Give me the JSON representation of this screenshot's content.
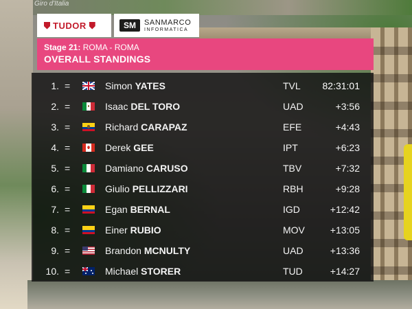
{
  "overlay_corner_text": "Giro d'Italia",
  "sponsors": {
    "tudor": "TUDOR",
    "sanmarco_name": "SANMARCO",
    "sanmarco_sub": "INFORMATICA",
    "sanmarco_mark": "SM"
  },
  "header": {
    "stage_label": "Stage 21:",
    "route": "ROMA - ROMA",
    "title": "OVERALL STANDINGS",
    "color": "#e8477f"
  },
  "standings": [
    {
      "pos": "1.",
      "trend": "=",
      "flag": "gb",
      "first": "Simon",
      "last": "YATES",
      "team": "TVL",
      "time": "82:31:01"
    },
    {
      "pos": "2.",
      "trend": "=",
      "flag": "mx",
      "first": "Isaac",
      "last": "DEL TORO",
      "team": "UAD",
      "time": "+3:56"
    },
    {
      "pos": "3.",
      "trend": "=",
      "flag": "ec",
      "first": "Richard",
      "last": "CARAPAZ",
      "team": "EFE",
      "time": "+4:43"
    },
    {
      "pos": "4.",
      "trend": "=",
      "flag": "ca",
      "first": "Derek",
      "last": "GEE",
      "team": "IPT",
      "time": "+6:23"
    },
    {
      "pos": "5.",
      "trend": "=",
      "flag": "it",
      "first": "Damiano",
      "last": "CARUSO",
      "team": "TBV",
      "time": "+7:32"
    },
    {
      "pos": "6.",
      "trend": "=",
      "flag": "it",
      "first": "Giulio",
      "last": "PELLIZZARI",
      "team": "RBH",
      "time": "+9:28"
    },
    {
      "pos": "7.",
      "trend": "=",
      "flag": "co",
      "first": "Egan",
      "last": "BERNAL",
      "team": "IGD",
      "time": "+12:42"
    },
    {
      "pos": "8.",
      "trend": "=",
      "flag": "co",
      "first": "Einer",
      "last": "RUBIO",
      "team": "MOV",
      "time": "+13:05"
    },
    {
      "pos": "9.",
      "trend": "=",
      "flag": "us",
      "first": "Brandon",
      "last": "MCNULTY",
      "team": "UAD",
      "time": "+13:36"
    },
    {
      "pos": "10.",
      "trend": "=",
      "flag": "au",
      "first": "Michael",
      "last": "STORER",
      "team": "TUD",
      "time": "+14:27"
    }
  ]
}
